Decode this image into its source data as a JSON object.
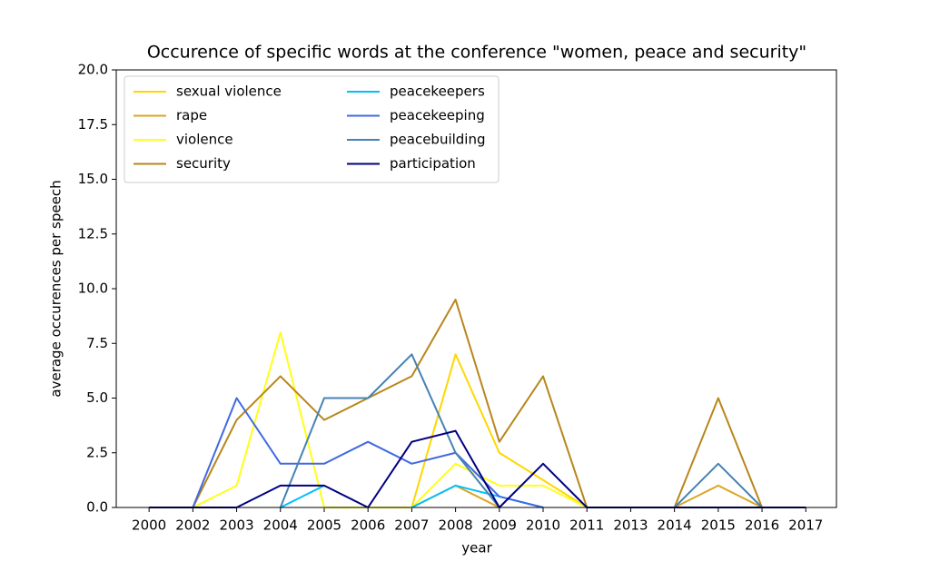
{
  "chart_data": {
    "type": "line",
    "title": "Occurence of specific words at the conference \"women, peace and security\"",
    "x_label": "year",
    "y_label": "average occurences per speech",
    "categories": [
      "2000",
      "2002",
      "2003",
      "2004",
      "2005",
      "2006",
      "2007",
      "2008",
      "2009",
      "2010",
      "2011",
      "2013",
      "2014",
      "2015",
      "2016",
      "2017"
    ],
    "ylim": [
      0,
      20
    ],
    "yticks": [
      {
        "value": 0,
        "label": "0.0"
      },
      2.5,
      {
        "value": 5,
        "label": "5.0"
      },
      7.5,
      {
        "value": 10,
        "label": "10.0"
      },
      12.5,
      {
        "value": 15,
        "label": "15.0"
      },
      17.5,
      {
        "value": 20,
        "label": "20.0"
      }
    ],
    "legend": "upper left",
    "series": [
      {
        "name": "sexual violence",
        "color": "#ffd700",
        "values": [
          null,
          null,
          null,
          null,
          null,
          null,
          0,
          7,
          2.5,
          1.25,
          0,
          null,
          null,
          null,
          null,
          null
        ]
      },
      {
        "name": "rape",
        "color": "#daa520",
        "values": [
          null,
          null,
          null,
          null,
          null,
          null,
          0,
          1,
          0,
          null,
          null,
          null,
          0,
          1,
          0,
          null
        ]
      },
      {
        "name": "violence",
        "color": "#ffff1a",
        "values": [
          null,
          0,
          1,
          8,
          0,
          0,
          0,
          2,
          1,
          1,
          0,
          null,
          null,
          null,
          null,
          null
        ]
      },
      {
        "name": "security",
        "color": "#b8861b",
        "values": [
          null,
          0,
          4,
          6,
          4,
          5,
          6,
          9.5,
          3,
          6,
          0,
          0,
          0,
          5,
          0,
          null
        ]
      },
      {
        "name": "peacekeepers",
        "color": "#00bfff",
        "values": [
          null,
          null,
          null,
          0,
          1,
          null,
          0,
          1,
          0.5,
          0,
          null,
          null,
          null,
          null,
          null,
          null
        ]
      },
      {
        "name": "peacekeeping",
        "color": "#4169e1",
        "values": [
          null,
          0,
          5,
          2,
          2,
          3,
          2,
          2.5,
          0.5,
          0,
          null,
          null,
          null,
          null,
          null,
          null
        ]
      },
      {
        "name": "peacebuilding",
        "color": "#4682b4",
        "values": [
          null,
          null,
          null,
          0,
          5,
          5,
          7,
          2.5,
          0,
          null,
          null,
          null,
          0,
          2,
          0,
          null
        ]
      },
      {
        "name": "participation",
        "color": "#000080",
        "values": [
          0,
          0,
          0,
          1,
          1,
          0,
          3,
          3.5,
          0,
          2,
          0,
          0,
          0,
          0,
          0,
          0
        ]
      }
    ]
  }
}
